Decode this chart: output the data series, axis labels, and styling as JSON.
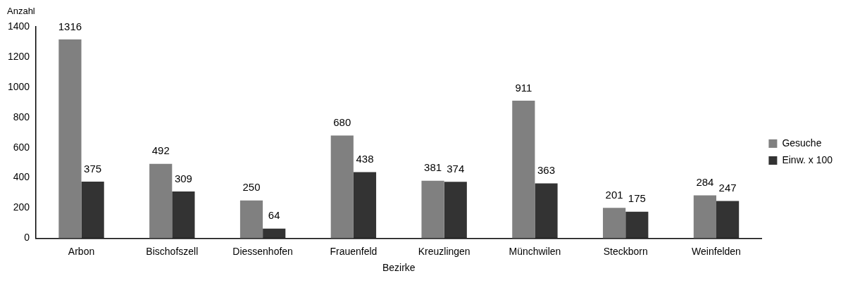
{
  "chart_data": {
    "type": "bar",
    "xlabel": "Bezirke",
    "ylabel": "Anzahl",
    "categories": [
      "Arbon",
      "Bischofszell",
      "Diessenhofen",
      "Frauenfeld",
      "Kreuzlingen",
      "Münchwilen",
      "Steckborn",
      "Weinfelden"
    ],
    "series": [
      {
        "name": "Gesuche",
        "color": "#808080",
        "values": [
          1316,
          492,
          250,
          680,
          381,
          911,
          201,
          284
        ]
      },
      {
        "name": "Einw. x 100",
        "color": "#333333",
        "values": [
          375,
          309,
          64,
          438,
          374,
          363,
          175,
          247
        ]
      }
    ],
    "ylim": [
      0,
      1400
    ],
    "yticks": [
      0,
      200,
      400,
      600,
      800,
      1000,
      1200,
      1400
    ],
    "grid": false,
    "legend": "right",
    "data_labels": true
  }
}
